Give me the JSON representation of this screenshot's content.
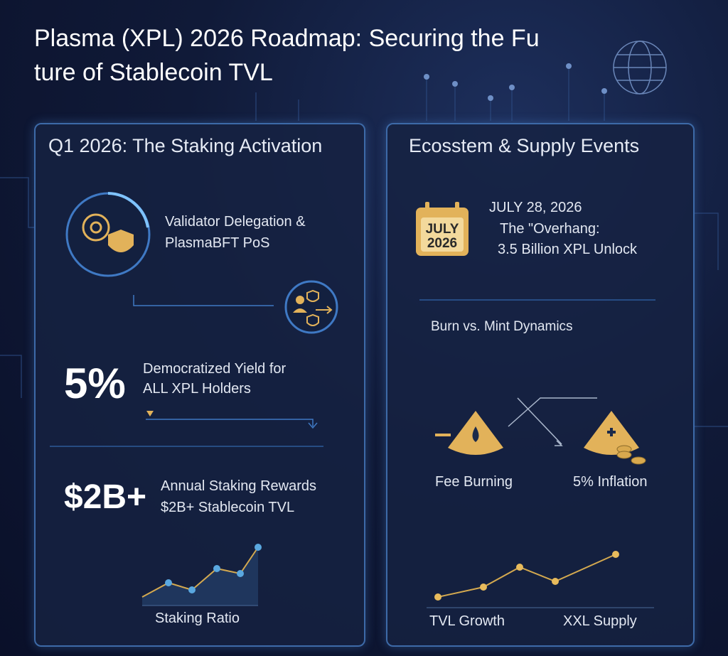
{
  "title": "Plasma (XPL) 2026 Roadmap: Securing the Fu ture of Stablecoin TVL",
  "left_panel": {
    "heading": "Q1 2026: The Staking Activation",
    "validator": [
      "Validator Delegation &",
      "PlasmaBFT PoS"
    ],
    "yield_figure": "5%",
    "yield_text": [
      "Democratized Yield for",
      "ALL XPL Holders"
    ],
    "rewards_figure": "$2B+",
    "rewards_text": [
      "Annual Staking Rewards",
      "$2B+ Stablecoin TVL"
    ],
    "chart_label": "Staking Ratio"
  },
  "right_panel": {
    "heading": "Ecosstem & Supply Events",
    "calendar": [
      "JULY",
      "2026"
    ],
    "event": [
      "JULY 28, 2026",
      "The \"Overhang:",
      "3.5 Billion XPL Unlock"
    ],
    "dynamics_heading": "Burn vs. Mint Dynamics",
    "burn_label": "Fee Burning",
    "mint_label": "5% Inflation",
    "chart_labels": [
      "TVL Growth",
      "XXL Supply"
    ]
  }
}
